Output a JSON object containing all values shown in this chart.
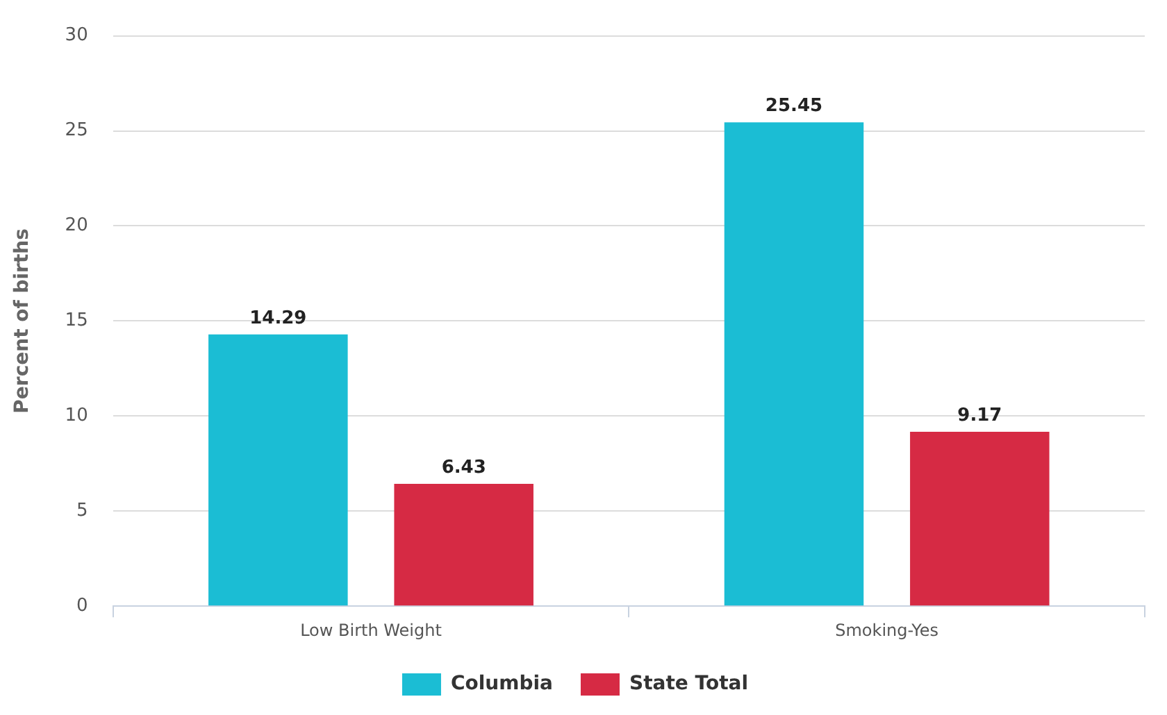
{
  "chart_data": {
    "type": "bar",
    "ylabel": "Percent of births",
    "categories": [
      "Low Birth Weight",
      "Smoking-Yes"
    ],
    "series": [
      {
        "name": "Columbia",
        "color": "#1bbdd4",
        "values": [
          14.29,
          25.45
        ]
      },
      {
        "name": "State Total",
        "color": "#d62a44",
        "values": [
          6.43,
          9.17
        ]
      }
    ],
    "ylim": [
      0,
      30
    ],
    "yticks": [
      0,
      5,
      10,
      15,
      20,
      25,
      30
    ],
    "grid": "y",
    "legend": "bottom",
    "data_labels": true
  }
}
